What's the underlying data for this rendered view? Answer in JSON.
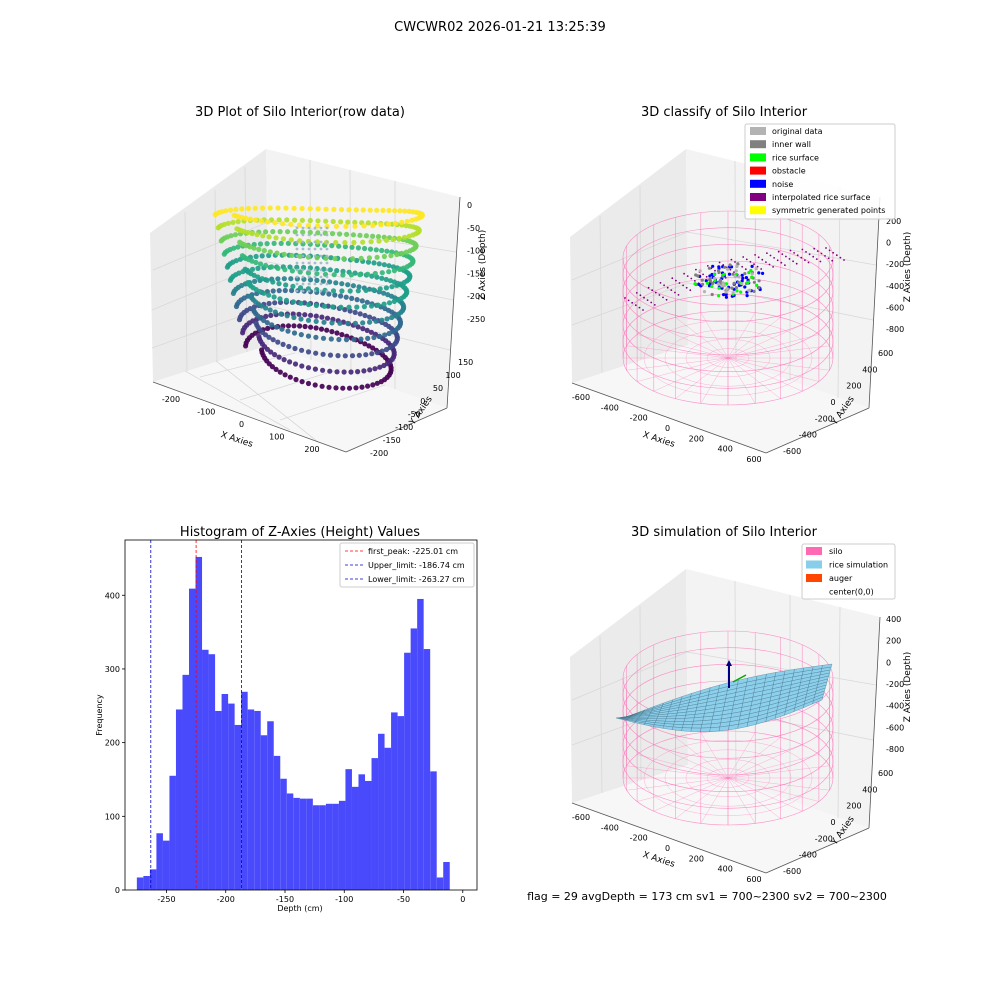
{
  "suptitle": "CWCWR02 2026-01-21 13:25:39",
  "status_line": "flag = 29  avgDepth = 173 cm  sv1 = 700~2300  sv2 = 700~2300",
  "colors": {
    "hist_bar": "#4a4afd",
    "first_peak_line": "#ff0000",
    "limit_line": "#0000cc",
    "silo": "#ff69b4",
    "rice": "#87ceeb",
    "auger": "#ff4500",
    "pane_left": "#ebebeb",
    "pane_right": "#f3f3f3",
    "pane_floor": "#f7f7f7"
  },
  "chart_data": [
    {
      "type": "scatter",
      "projection": "3d",
      "title": "3D Plot of Silo Interior(row data)",
      "xlabel": "X Axies",
      "ylabel": "Y Axies",
      "zlabel": "Z Axies (Depth)",
      "xticks": [
        "-200",
        "-100",
        "0",
        "100",
        "200"
      ],
      "yticks": [
        "150",
        "100",
        "50",
        "0",
        "-50",
        "-100",
        "-150",
        "-200"
      ],
      "zticks": [
        "0",
        "-50",
        "-100",
        "-150",
        "-200",
        "-250"
      ],
      "colormap": "viridis"
    },
    {
      "type": "scatter",
      "projection": "3d",
      "title": "3D classify of Silo Interior",
      "xlabel": "X Axies",
      "ylabel": "Y Axies",
      "zlabel": "Z Axies (Depth)",
      "xticks": [
        "-600",
        "-400",
        "-200",
        "0",
        "200",
        "400",
        "600"
      ],
      "yticks": [
        "600",
        "400",
        "200",
        "0",
        "-200",
        "-400",
        "-600"
      ],
      "zticks": [
        "200",
        "0",
        "-200",
        "-400",
        "-600",
        "-800"
      ],
      "legend_position": "top-right",
      "legend": [
        {
          "label": "original data",
          "color": "#b3b3b3"
        },
        {
          "label": "inner wall",
          "color": "#808080"
        },
        {
          "label": "rice surface",
          "color": "#00ff00"
        },
        {
          "label": "obstacle",
          "color": "#ff0000"
        },
        {
          "label": "noise",
          "color": "#0000ff"
        },
        {
          "label": "interpolated rice surface",
          "color": "#800080"
        },
        {
          "label": "symmetric generated points",
          "color": "#ffff00"
        }
      ]
    },
    {
      "type": "bar",
      "title": "Histogram of Z-Axies (Height) Values",
      "xlabel": "Depth (cm)",
      "ylabel": "Frequency",
      "xlim": [
        -285,
        12
      ],
      "ylim": [
        0,
        475
      ],
      "xticks": [
        -250,
        -200,
        -150,
        -100,
        -50,
        0
      ],
      "yticks": [
        0,
        100,
        200,
        300,
        400
      ],
      "bin_width": 5.5,
      "bin_start": -275,
      "values": [
        17,
        19,
        28,
        77,
        67,
        155,
        245,
        292,
        409,
        452,
        326,
        320,
        243,
        266,
        253,
        224,
        269,
        245,
        243,
        210,
        229,
        182,
        151,
        131,
        125,
        124,
        124,
        115,
        115,
        117,
        117,
        121,
        164,
        140,
        157,
        148,
        179,
        212,
        193,
        241,
        236,
        322,
        355,
        395,
        327,
        161,
        17,
        38
      ],
      "vlines": [
        {
          "x": -225.01,
          "style": "first_peak",
          "label": "first_peak: -225.01 cm"
        },
        {
          "x": -186.74,
          "style": "limit",
          "label": "Upper_limit: -186.74 cm"
        },
        {
          "x": -263.27,
          "style": "limit",
          "label": "Lower_limit: -263.27 cm"
        }
      ],
      "legend_position": "top-right"
    },
    {
      "type": "surface",
      "projection": "3d",
      "title": "3D simulation of Silo Interior",
      "xlabel": "X Axies",
      "ylabel": "Y Axies",
      "zlabel": "Z Axies (Depth)",
      "xticks": [
        "-600",
        "-400",
        "-200",
        "0",
        "200",
        "400",
        "600"
      ],
      "yticks": [
        "600",
        "400",
        "200",
        "0",
        "-200",
        "-400",
        "-600"
      ],
      "zticks": [
        "400",
        "200",
        "0",
        "-200",
        "-400",
        "-600",
        "-800"
      ],
      "legend_position": "top-right",
      "legend": [
        {
          "label": "silo",
          "color": "#ff69b4"
        },
        {
          "label": "rice simulation",
          "color": "#87ceeb"
        },
        {
          "label": "auger",
          "color": "#ff4500"
        },
        {
          "label": "center(0,0)",
          "color": ""
        }
      ]
    }
  ]
}
